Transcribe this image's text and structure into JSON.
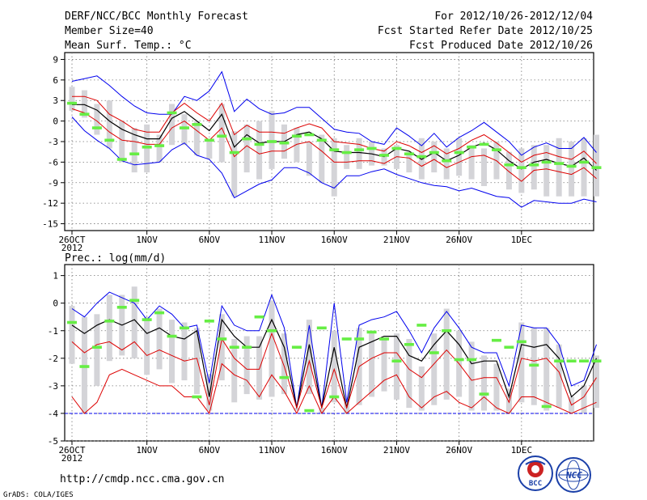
{
  "header": {
    "title": "DERF/NCC/BCC Monthly Forecast",
    "member_size": "Member Size=40",
    "variable": "Mean Surf. Temp.: °C",
    "period": "For 2012/10/26-2012/12/04",
    "started": "Fcst Started Refer Date 2012/10/25",
    "produced": "Fcst Produced Date 2012/10/26"
  },
  "footer": {
    "url": "http://cmdp.ncc.cma.gov.cn",
    "credit": "GrADS: COLA/IGES",
    "logo_bcc": "BCC",
    "logo_ncc": "NCC"
  },
  "colors": {
    "blue": "#0000ee",
    "red": "#dd0000",
    "black": "#000000",
    "green": "#66ee44",
    "box": "#d4d4d8",
    "grid": "#777777",
    "dashed_floor": "#0000ee"
  },
  "chart_data": [
    {
      "type": "line",
      "title": "Mean Surf. Temp.: °C",
      "days": 40,
      "xlabels": [
        {
          "day": 0,
          "label": "26OCT",
          "sub": "2012"
        },
        {
          "day": 6,
          "label": "1NOV"
        },
        {
          "day": 11,
          "label": "6NOV"
        },
        {
          "day": 16,
          "label": "11NOV"
        },
        {
          "day": 21,
          "label": "16NOV"
        },
        {
          "day": 26,
          "label": "21NOV"
        },
        {
          "day": 31,
          "label": "26NOV"
        },
        {
          "day": 36,
          "label": "1DEC"
        }
      ],
      "ylim": [
        -16,
        10
      ],
      "yticks": [
        9,
        6,
        3,
        0,
        -3,
        -6,
        -9,
        -12,
        -15
      ],
      "floor": null,
      "series": [
        {
          "name": "max",
          "color": "blue",
          "values": [
            5.8,
            6.2,
            6.6,
            5.2,
            3.6,
            2.2,
            1.2,
            1.0,
            1.0,
            3.6,
            3.0,
            4.4,
            7.2,
            1.4,
            3.2,
            1.8,
            1.0,
            1.2,
            2.0,
            2.0,
            0.4,
            -1.2,
            -1.6,
            -1.8,
            -3.0,
            -3.4,
            -1.0,
            -2.2,
            -3.6,
            -1.8,
            -3.8,
            -2.4,
            -1.4,
            -0.2,
            -1.6,
            -3.0,
            -5.0,
            -3.8,
            -3.2,
            -4.0,
            -4.0,
            -2.4,
            -4.6
          ]
        },
        {
          "name": "upper",
          "color": "red",
          "values": [
            3.6,
            3.6,
            3.0,
            1.0,
            0.0,
            -1.2,
            -1.6,
            -1.6,
            1.2,
            2.6,
            1.2,
            0.0,
            2.6,
            -2.0,
            -0.6,
            -1.6,
            -1.6,
            -1.8,
            -1.0,
            -0.4,
            -1.0,
            -3.0,
            -3.2,
            -3.4,
            -4.0,
            -4.4,
            -3.0,
            -3.6,
            -4.6,
            -3.6,
            -4.8,
            -4.0,
            -2.8,
            -2.0,
            -3.2,
            -4.6,
            -6.0,
            -5.0,
            -4.6,
            -5.2,
            -5.6,
            -4.4,
            -6.2
          ]
        },
        {
          "name": "mean",
          "color": "black",
          "values": [
            2.4,
            2.4,
            1.6,
            0.0,
            -1.2,
            -2.0,
            -2.6,
            -2.6,
            0.4,
            1.4,
            0.0,
            -1.4,
            1.0,
            -3.8,
            -2.0,
            -3.2,
            -3.0,
            -3.0,
            -2.0,
            -1.6,
            -2.6,
            -4.4,
            -4.6,
            -4.6,
            -4.8,
            -5.2,
            -4.0,
            -4.4,
            -5.6,
            -4.6,
            -5.8,
            -5.0,
            -3.8,
            -3.2,
            -4.2,
            -5.8,
            -7.0,
            -6.0,
            -5.6,
            -6.2,
            -6.6,
            -5.4,
            -7.2
          ]
        },
        {
          "name": "lower",
          "color": "red",
          "values": [
            1.8,
            1.2,
            0.0,
            -1.6,
            -2.8,
            -3.0,
            -3.4,
            -3.4,
            -1.0,
            0.0,
            -1.4,
            -2.8,
            -1.0,
            -5.2,
            -3.6,
            -4.8,
            -4.4,
            -4.4,
            -3.4,
            -3.0,
            -4.4,
            -6.0,
            -6.0,
            -5.8,
            -5.8,
            -6.2,
            -5.2,
            -5.4,
            -6.6,
            -5.6,
            -6.8,
            -6.0,
            -5.2,
            -5.0,
            -5.8,
            -7.4,
            -8.8,
            -7.2,
            -7.0,
            -7.4,
            -7.8,
            -6.8,
            -8.4
          ]
        },
        {
          "name": "min",
          "color": "blue",
          "values": [
            0.6,
            -1.4,
            -2.8,
            -4.0,
            -5.8,
            -6.4,
            -6.2,
            -6.0,
            -4.2,
            -3.2,
            -5.0,
            -5.6,
            -7.6,
            -11.2,
            -10.2,
            -9.2,
            -8.6,
            -6.8,
            -6.8,
            -7.6,
            -9.0,
            -9.8,
            -8.0,
            -8.0,
            -7.4,
            -7.0,
            -7.8,
            -8.4,
            -9.0,
            -9.4,
            -9.6,
            -10.2,
            -9.8,
            -10.4,
            -11.0,
            -11.2,
            -12.6,
            -11.6,
            -11.8,
            -12.0,
            -12.0,
            -11.4,
            -11.8
          ]
        }
      ],
      "boxes": {
        "top": [
          5.0,
          4.5,
          2.5,
          3.0,
          0.0,
          -1.0,
          -0.5,
          -2.0,
          2.5,
          1.0,
          0.0,
          -3.0,
          2.5,
          -1.5,
          -0.5,
          0.0,
          1.5,
          -0.5,
          -1.0,
          -3.0,
          -2.0,
          -2.5,
          -3.5,
          -2.5,
          -3.0,
          -4.0,
          -3.5,
          -4.5,
          -2.5,
          -3.0,
          -4.0,
          -2.5,
          -3.5,
          -4.0,
          -3.0,
          -4.5,
          -4.0,
          -3.5,
          -3.5,
          -2.5,
          -3.0,
          -2.5,
          -2.0
        ],
        "bottom": [
          1.5,
          0.5,
          -2.0,
          -4.0,
          -6.0,
          -7.5,
          -7.5,
          -6.0,
          -3.5,
          -3.5,
          -5.0,
          -5.5,
          -6.0,
          -11.0,
          -7.5,
          -8.5,
          -7.0,
          -5.5,
          -6.0,
          -8.0,
          -9.0,
          -11.0,
          -7.0,
          -7.0,
          -6.5,
          -6.5,
          -7.0,
          -7.5,
          -8.5,
          -7.5,
          -8.5,
          -8.0,
          -8.5,
          -9.5,
          -8.5,
          -10.0,
          -10.5,
          -10.0,
          -11.0,
          -11.0,
          -11.0,
          -11.0,
          -11.0
        ]
      },
      "obs": [
        2.6,
        1.0,
        -1.0,
        -2.8,
        -5.6,
        -4.8,
        -3.8,
        -3.6,
        1.2,
        -1.0,
        -0.5,
        -2.8,
        -2.2,
        -4.6,
        -2.6,
        -3.4,
        -3.0,
        -3.2,
        -2.2,
        -2.0,
        -2.8,
        -4.2,
        -4.6,
        -4.2,
        -4.0,
        -5.0,
        -4.0,
        -4.8,
        -5.2,
        -4.6,
        -5.8,
        -4.6,
        -3.8,
        -3.4,
        -4.2,
        -6.4,
        -6.8,
        -6.4,
        -6.0,
        -6.2,
        -6.6,
        -6.0,
        -6.8
      ]
    },
    {
      "type": "line",
      "title": "Prec.: log(mm/d)",
      "days": 40,
      "xlabels": [
        {
          "day": 0,
          "label": "26OCT",
          "sub": "2012"
        },
        {
          "day": 6,
          "label": "1NOV"
        },
        {
          "day": 11,
          "label": "6NOV"
        },
        {
          "day": 16,
          "label": "11NOV"
        },
        {
          "day": 21,
          "label": "16NOV"
        },
        {
          "day": 26,
          "label": "21NOV"
        },
        {
          "day": 31,
          "label": "26NOV"
        },
        {
          "day": 36,
          "label": "1DEC"
        }
      ],
      "ylim": [
        -5,
        1.4
      ],
      "yticks": [
        1,
        0,
        -1,
        -2,
        -3,
        -4,
        -5
      ],
      "floor": -4,
      "series": [
        {
          "name": "max",
          "color": "blue",
          "values": [
            -0.2,
            -0.5,
            0.0,
            0.4,
            0.2,
            0.0,
            -0.6,
            -0.1,
            -0.4,
            -0.9,
            -0.8,
            -2.9,
            -0.1,
            -0.8,
            -1.0,
            -1.0,
            0.3,
            -0.9,
            -3.8,
            -0.8,
            -3.8,
            0.0,
            -3.6,
            -0.8,
            -0.6,
            -0.5,
            -0.3,
            -1.0,
            -1.8,
            -0.9,
            -0.3,
            -0.9,
            -1.6,
            -1.8,
            -1.8,
            -3.0,
            -0.8,
            -0.9,
            -0.9,
            -1.5,
            -3.0,
            -2.8,
            -1.5
          ]
        },
        {
          "name": "mean",
          "color": "black",
          "values": [
            -0.8,
            -1.1,
            -0.8,
            -0.6,
            -0.8,
            -0.6,
            -1.1,
            -0.9,
            -1.2,
            -1.3,
            -1.0,
            -3.4,
            -0.6,
            -1.2,
            -1.6,
            -1.6,
            -0.6,
            -1.6,
            -3.8,
            -1.5,
            -3.8,
            -1.6,
            -3.8,
            -1.6,
            -1.4,
            -1.2,
            -1.2,
            -1.9,
            -2.1,
            -1.5,
            -1.0,
            -1.5,
            -2.2,
            -2.1,
            -2.1,
            -3.4,
            -1.5,
            -1.6,
            -1.5,
            -2.0,
            -3.4,
            -3.0,
            -2.0
          ]
        },
        {
          "name": "upper",
          "color": "red",
          "values": [
            -1.4,
            -1.8,
            -1.5,
            -1.4,
            -1.7,
            -1.4,
            -1.9,
            -1.7,
            -1.9,
            -2.1,
            -2.0,
            -3.7,
            -1.3,
            -2.0,
            -2.4,
            -2.4,
            -1.1,
            -2.3,
            -3.8,
            -2.1,
            -3.8,
            -2.4,
            -3.8,
            -2.3,
            -2.0,
            -1.8,
            -1.8,
            -2.4,
            -2.7,
            -2.2,
            -1.7,
            -2.2,
            -2.8,
            -2.7,
            -2.7,
            -3.6,
            -2.0,
            -2.1,
            -2.0,
            -2.5,
            -3.7,
            -3.4,
            -2.7
          ]
        },
        {
          "name": "lower",
          "color": "red",
          "values": [
            -3.4,
            -4.0,
            -3.6,
            -2.6,
            -2.4,
            -2.6,
            -2.8,
            -3.0,
            -3.0,
            -3.4,
            -3.4,
            -4.0,
            -2.2,
            -2.6,
            -2.8,
            -3.4,
            -2.6,
            -3.2,
            -4.0,
            -3.0,
            -4.0,
            -3.4,
            -4.0,
            -3.6,
            -3.2,
            -2.8,
            -2.6,
            -3.4,
            -3.8,
            -3.4,
            -3.2,
            -3.6,
            -3.8,
            -3.4,
            -3.8,
            -4.0,
            -3.4,
            -3.4,
            -3.6,
            -3.8,
            -4.0,
            -3.8,
            -3.6
          ]
        }
      ],
      "boxes": {
        "top": [
          -0.1,
          -0.5,
          -0.4,
          0.3,
          0.3,
          0.6,
          -0.5,
          -0.2,
          -0.6,
          -0.7,
          -0.9,
          -2.6,
          -0.4,
          -1.3,
          -1.2,
          -1.2,
          0.1,
          -1.1,
          -3.8,
          -0.6,
          -3.8,
          -1.0,
          -3.6,
          -0.9,
          -1.1,
          -1.3,
          -1.1,
          -1.3,
          -2.3,
          -1.1,
          -0.2,
          -1.0,
          -1.4,
          -1.9,
          -2.2,
          -3.1,
          -0.7,
          -0.9,
          -0.9,
          -1.5,
          -3.4,
          -3.0,
          -1.9
        ],
        "bottom": [
          -2.2,
          -4.0,
          -3.0,
          -2.1,
          -1.9,
          -2.0,
          -2.6,
          -2.4,
          -2.9,
          -2.8,
          -3.3,
          -3.9,
          -2.8,
          -3.6,
          -3.3,
          -3.5,
          -3.4,
          -3.3,
          -3.9,
          -3.3,
          -4.0,
          -3.6,
          -4.0,
          -3.7,
          -3.4,
          -3.2,
          -3.5,
          -3.8,
          -3.9,
          -3.7,
          -3.5,
          -3.4,
          -3.9,
          -3.9,
          -3.9,
          -4.0,
          -3.6,
          -3.7,
          -3.9,
          -3.8,
          -4.0,
          -4.0,
          -3.8
        ]
      },
      "obs": [
        -0.7,
        -2.3,
        -1.6,
        -0.65,
        -0.15,
        0.1,
        -0.6,
        -0.35,
        -1.2,
        -0.9,
        -3.4,
        -0.65,
        -1.3,
        -1.6,
        -1.6,
        -0.5,
        -1.0,
        -2.7,
        -1.6,
        -3.9,
        -0.9,
        -3.4,
        -1.3,
        -1.3,
        -1.05,
        -1.3,
        -2.1,
        -1.5,
        -0.8,
        -1.8,
        -1.0,
        -2.05,
        -2.05,
        -3.3,
        -1.35,
        -1.6,
        -1.4,
        -2.25,
        -3.75,
        -2.1,
        -2.1,
        -2.1,
        -2.1
      ]
    }
  ]
}
